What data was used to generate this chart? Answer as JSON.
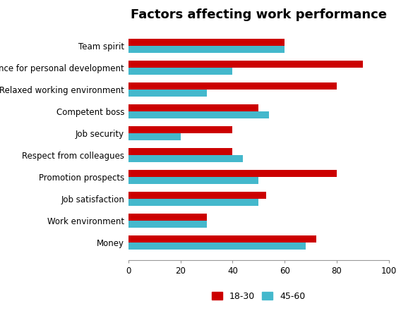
{
  "title": "Factors affecting work performance",
  "categories": [
    "Money",
    "Work environment",
    "Job satisfaction",
    "Promotion prospects",
    "Respect from colleagues",
    "Job security",
    "Competent boss",
    "Relaxed working environment",
    "Chance for personal development",
    "Team spirit"
  ],
  "values_18_30": [
    72,
    30,
    53,
    80,
    40,
    40,
    50,
    80,
    90,
    60
  ],
  "values_45_60": [
    68,
    30,
    50,
    50,
    44,
    20,
    54,
    30,
    40,
    60
  ],
  "color_18_30": "#CC0000",
  "color_45_60": "#44B8CC",
  "legend_labels": [
    "18-30",
    "45-60"
  ],
  "xlim": [
    0,
    100
  ],
  "xticks": [
    0,
    20,
    40,
    60,
    80,
    100
  ],
  "background_color": "#FFFFFF",
  "title_fontsize": 13
}
